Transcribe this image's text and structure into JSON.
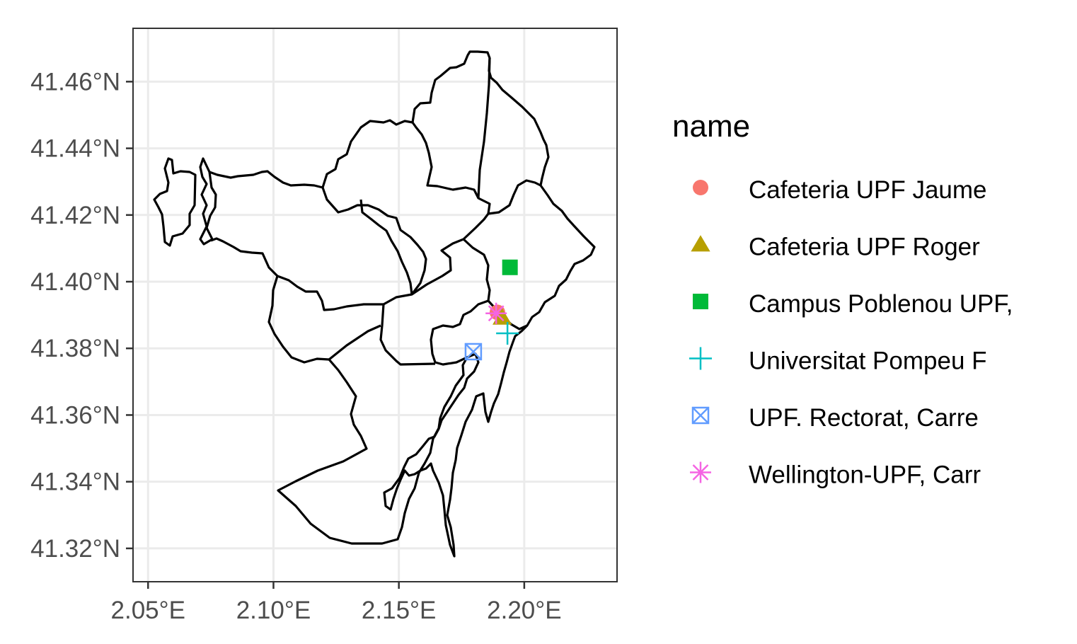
{
  "chart_data": {
    "type": "scatter",
    "basemap": "district boundary outlines",
    "x_axis": {
      "range": [
        2.044,
        2.237
      ],
      "ticks": [
        2.05,
        2.1,
        2.15,
        2.2
      ],
      "tick_labels": [
        "2.05°E",
        "2.10°E",
        "2.15°E",
        "2.20°E"
      ]
    },
    "y_axis": {
      "range": [
        41.31,
        41.476
      ],
      "ticks": [
        41.32,
        41.34,
        41.36,
        41.38,
        41.4,
        41.42,
        41.44,
        41.46
      ],
      "tick_labels": [
        "41.32°N",
        "41.34°N",
        "41.36°N",
        "41.38°N",
        "41.40°N",
        "41.42°N",
        "41.44°N",
        "41.46°N"
      ]
    },
    "grid": true,
    "legend": {
      "title": "name",
      "placement": "right"
    },
    "series": [
      {
        "name": "Cafeteria UPF Jaume",
        "shape": "circle",
        "color": "#F8766D",
        "lon": 2.1893,
        "lat": 41.3908
      },
      {
        "name": "Cafeteria UPF Roger",
        "shape": "triangle",
        "color": "#B79F00",
        "lon": 2.1912,
        "lat": 41.3892
      },
      {
        "name": "Campus Poblenou UPF,",
        "shape": "square",
        "color": "#00BA38",
        "lon": 2.1943,
        "lat": 41.4043
      },
      {
        "name": "Universitat Pompeu F",
        "shape": "plus",
        "color": "#00BFC4",
        "lon": 2.1933,
        "lat": 41.3845
      },
      {
        "name": "UPF. Rectorat, Carre",
        "shape": "square-cross",
        "color": "#619CFF",
        "lon": 2.1797,
        "lat": 41.379
      },
      {
        "name": "Wellington-UPF, Carr",
        "shape": "asterisk",
        "color": "#F564E3",
        "lon": 2.1888,
        "lat": 41.3905
      }
    ]
  }
}
